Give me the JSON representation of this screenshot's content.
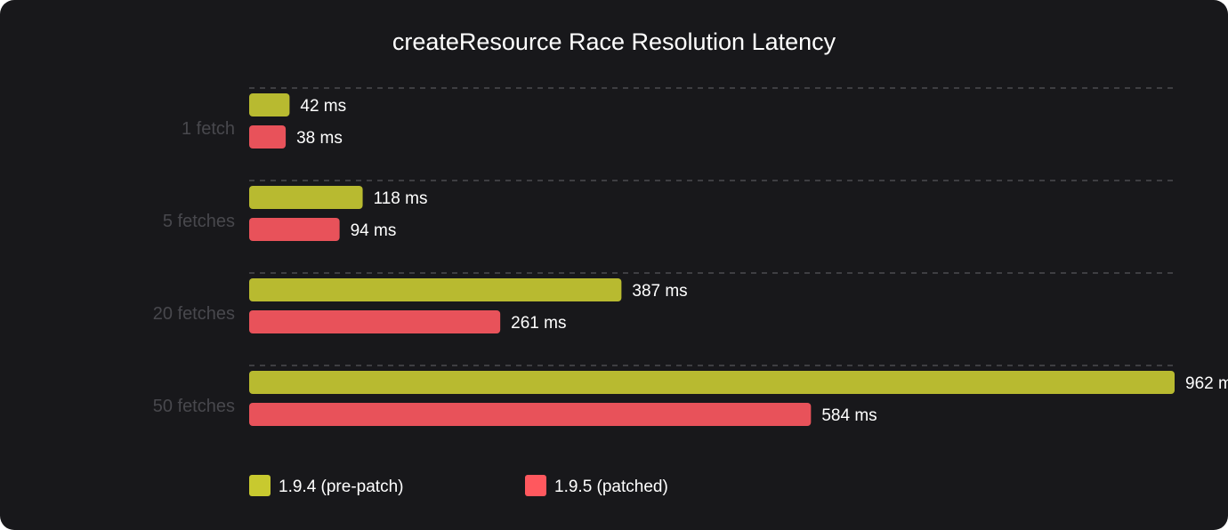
{
  "chart_data": {
    "type": "bar",
    "orientation": "horizontal",
    "title": "createResource Race Resolution Latency",
    "categories": [
      "1 fetch",
      "5 fetches",
      "20 fetches",
      "50 fetches"
    ],
    "unit": "ms",
    "xlim": [
      0,
      962
    ],
    "grid": "dashed horizontal separators",
    "legend_placement": "bottom-left",
    "series": [
      {
        "name": "1.9.4 (pre-patch)",
        "values": [
          42,
          118,
          387,
          962
        ],
        "color": "#b8ba30",
        "legend_color": "#c8c92f"
      },
      {
        "name": "1.9.5 (patched)",
        "values": [
          38,
          94,
          261,
          584
        ],
        "color": "#e8525a",
        "legend_color": "#ff585e"
      }
    ]
  },
  "colors": {
    "background": "#18181b",
    "grid": "#4a4a4f",
    "category_text": "#48484d",
    "text": "#ffffff"
  }
}
